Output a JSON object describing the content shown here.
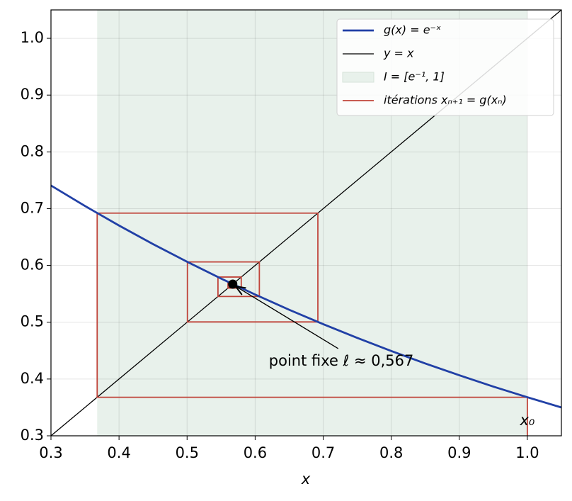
{
  "chart_data": {
    "type": "line",
    "xlabel": "x",
    "xlim": [
      0.3,
      1.05
    ],
    "ylim": [
      0.3,
      1.05
    ],
    "xticks": [
      0.3,
      0.4,
      0.5,
      0.6,
      0.7,
      0.8,
      0.9,
      {
        "value": 1,
        "label": "1.0"
      }
    ],
    "yticks": [
      0.3,
      0.4,
      0.5,
      0.6,
      0.7,
      0.8,
      0.9,
      {
        "value": 1,
        "label": "1.0"
      }
    ],
    "grid": true,
    "legend": "upper right",
    "series": [
      {
        "name": "g(x) = e⁻ˣ",
        "type": "line",
        "color": "#2140a6",
        "x": [
          0.3,
          0.35,
          0.4,
          0.45,
          0.5,
          0.55,
          0.6,
          0.65,
          0.7,
          0.75,
          0.8,
          0.85,
          0.9,
          0.95,
          1,
          1.05
        ],
        "values": [
          0.7408,
          0.7047,
          0.6703,
          0.6376,
          0.6065,
          0.5769,
          0.5488,
          0.522,
          0.4966,
          0.4724,
          0.4493,
          0.4274,
          0.4066,
          0.3867,
          0.3679,
          0.3499
        ]
      },
      {
        "name": "y = x",
        "type": "line",
        "color": "#000000",
        "x": [
          0.3,
          1.05
        ],
        "values": [
          0.3,
          1.05
        ]
      },
      {
        "name": "I = [e⁻¹, 1]",
        "type": "span",
        "color": "#e8f1eb",
        "x": [
          0.3679,
          1
        ]
      },
      {
        "name": "itérations xₙ₊₁ = g(xₙ)",
        "type": "line",
        "color": "#c0443a",
        "x": [
          1,
          1,
          0.3679,
          0.3679,
          0.6922,
          0.6922,
          0.5005,
          0.5005,
          0.6062,
          0.6062,
          0.5454,
          0.5454,
          0.5796,
          0.5796,
          0.5601,
          0.5601,
          0.5711
        ],
        "values": [
          0.3,
          0.3679,
          0.3679,
          0.6922,
          0.6922,
          0.5005,
          0.5005,
          0.6062,
          0.6062,
          0.5454,
          0.5454,
          0.5796,
          0.5796,
          0.5601,
          0.5601,
          0.5711,
          0.5711
        ]
      }
    ],
    "fixed_point": {
      "x": 0.5671,
      "y": 0.5671,
      "color": "#000000"
    },
    "annotations": [
      {
        "text": "point fixe ℓ ≈ 0,567"
      },
      {
        "text": "x₀"
      }
    ]
  }
}
